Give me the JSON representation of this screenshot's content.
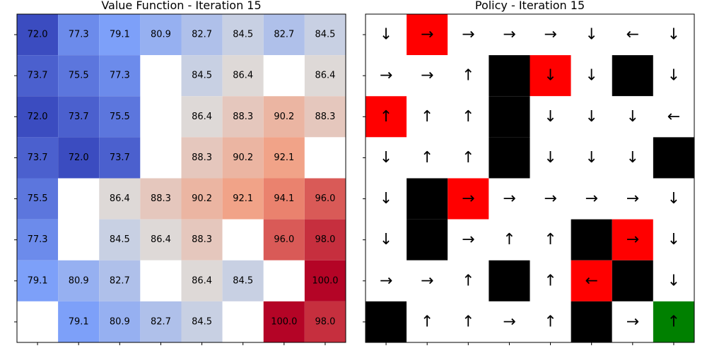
{
  "chart_data": [
    {
      "type": "heatmap",
      "title": "Value Function - Iteration 15",
      "colormap": "coolwarm",
      "vmin": 72.0,
      "vmax": 100.0,
      "rows": 8,
      "cols": 8,
      "grid_on": false,
      "values": [
        [
          72.0,
          77.3,
          79.1,
          80.9,
          82.7,
          84.5,
          82.7,
          84.5
        ],
        [
          73.7,
          75.5,
          77.3,
          null,
          84.5,
          86.4,
          null,
          86.4
        ],
        [
          72.0,
          73.7,
          75.5,
          null,
          86.4,
          88.3,
          90.2,
          88.3
        ],
        [
          73.7,
          72.0,
          73.7,
          null,
          88.3,
          90.2,
          92.1,
          null
        ],
        [
          75.5,
          null,
          86.4,
          88.3,
          90.2,
          92.1,
          94.1,
          96.0
        ],
        [
          77.3,
          null,
          84.5,
          86.4,
          88.3,
          null,
          96.0,
          98.0
        ],
        [
          79.1,
          80.9,
          82.7,
          null,
          86.4,
          84.5,
          null,
          100.0
        ],
        [
          null,
          79.1,
          80.9,
          82.7,
          84.5,
          null,
          100.0,
          98.0
        ]
      ]
    },
    {
      "type": "heatmap",
      "title": "Policy - Iteration 15",
      "grid_on": false,
      "colors": {
        "empty": "#ffffff",
        "wall": "#000000",
        "penalty": "#ff0000",
        "goal": "#008000"
      },
      "cell_types": [
        [
          "empty",
          "penalty",
          "empty",
          "empty",
          "empty",
          "empty",
          "empty",
          "empty"
        ],
        [
          "empty",
          "empty",
          "empty",
          "wall",
          "penalty",
          "empty",
          "wall",
          "empty"
        ],
        [
          "penalty",
          "empty",
          "empty",
          "wall",
          "empty",
          "empty",
          "empty",
          "empty"
        ],
        [
          "empty",
          "empty",
          "empty",
          "wall",
          "empty",
          "empty",
          "empty",
          "wall"
        ],
        [
          "empty",
          "wall",
          "penalty",
          "empty",
          "empty",
          "empty",
          "empty",
          "empty"
        ],
        [
          "empty",
          "wall",
          "empty",
          "empty",
          "empty",
          "wall",
          "penalty",
          "empty"
        ],
        [
          "empty",
          "empty",
          "empty",
          "wall",
          "empty",
          "penalty",
          "wall",
          "empty"
        ],
        [
          "wall",
          "empty",
          "empty",
          "empty",
          "empty",
          "wall",
          "empty",
          "goal"
        ]
      ],
      "arrows": [
        [
          "↓",
          "→",
          "→",
          "→",
          "→",
          "↓",
          "←",
          "↓"
        ],
        [
          "→",
          "→",
          "↑",
          "",
          "↓",
          "↓",
          "",
          "↓"
        ],
        [
          "↑",
          "↑",
          "↑",
          "",
          "↓",
          "↓",
          "↓",
          "←"
        ],
        [
          "↓",
          "↑",
          "↑",
          "",
          "↓",
          "↓",
          "↓",
          ""
        ],
        [
          "↓",
          "",
          "→",
          "→",
          "→",
          "→",
          "→",
          "↓"
        ],
        [
          "↓",
          "",
          "→",
          "↑",
          "↑",
          "",
          "→",
          "↓"
        ],
        [
          "→",
          "→",
          "↑",
          "",
          "↑",
          "←",
          "",
          "↓"
        ],
        [
          "",
          "↑",
          "↑",
          "→",
          "↑",
          "",
          "→",
          "↑"
        ]
      ]
    }
  ]
}
